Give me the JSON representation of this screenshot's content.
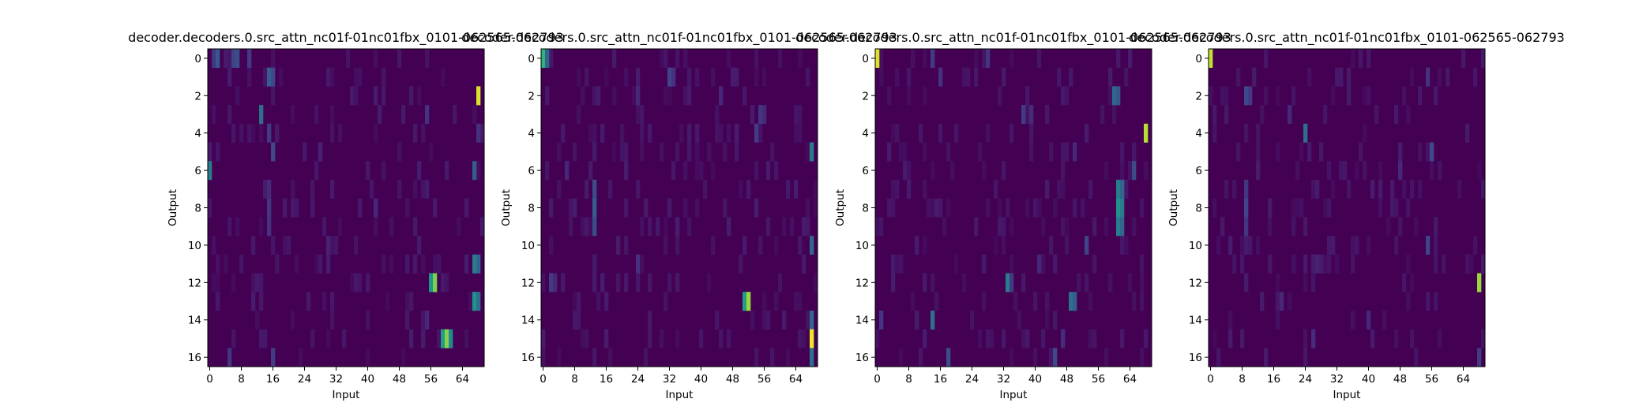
{
  "chart_data": [
    {
      "type": "heatmap",
      "title": "decoder.decoders.0.src_attn_nc01f-01nc01fbx_0101-062565-062793",
      "xlabel": "Input",
      "ylabel": "Output",
      "x_ticks": [
        "0",
        "8",
        "16",
        "24",
        "32",
        "40",
        "48",
        "56",
        "64"
      ],
      "y_ticks": [
        "0",
        "2",
        "4",
        "6",
        "8",
        "10",
        "12",
        "14",
        "16"
      ],
      "n_rows": 17,
      "n_cols": 70,
      "colormap": "viridis",
      "value_range": [
        0,
        1
      ],
      "background_value": 0.0,
      "highlights": [
        {
          "row": 0,
          "col": 1,
          "v": 0.2
        },
        {
          "row": 0,
          "col": 2,
          "v": 0.35
        },
        {
          "row": 0,
          "col": 6,
          "v": 0.25
        },
        {
          "row": 0,
          "col": 7,
          "v": 0.3
        },
        {
          "row": 0,
          "col": 10,
          "v": 0.22
        },
        {
          "row": 1,
          "col": 15,
          "v": 0.38
        },
        {
          "row": 1,
          "col": 16,
          "v": 0.28
        },
        {
          "row": 2,
          "col": 68,
          "v": 0.95
        },
        {
          "row": 3,
          "col": 13,
          "v": 0.42
        },
        {
          "row": 3,
          "col": 55,
          "v": 0.18
        },
        {
          "row": 4,
          "col": 15,
          "v": 0.22
        },
        {
          "row": 4,
          "col": 68,
          "v": 0.18
        },
        {
          "row": 5,
          "col": 16,
          "v": 0.28
        },
        {
          "row": 5,
          "col": 28,
          "v": 0.12
        },
        {
          "row": 6,
          "col": 0,
          "v": 0.45
        },
        {
          "row": 6,
          "col": 67,
          "v": 0.38
        },
        {
          "row": 7,
          "col": 15,
          "v": 0.15
        },
        {
          "row": 8,
          "col": 15,
          "v": 0.2
        },
        {
          "row": 8,
          "col": 42,
          "v": 0.14
        },
        {
          "row": 9,
          "col": 15,
          "v": 0.18
        },
        {
          "row": 10,
          "col": 30,
          "v": 0.12
        },
        {
          "row": 11,
          "col": 67,
          "v": 0.45
        },
        {
          "row": 11,
          "col": 68,
          "v": 0.4
        },
        {
          "row": 12,
          "col": 56,
          "v": 0.52
        },
        {
          "row": 12,
          "col": 57,
          "v": 0.8
        },
        {
          "row": 13,
          "col": 67,
          "v": 0.5
        },
        {
          "row": 13,
          "col": 68,
          "v": 0.42
        },
        {
          "row": 14,
          "col": 55,
          "v": 0.15
        },
        {
          "row": 15,
          "col": 59,
          "v": 0.55
        },
        {
          "row": 15,
          "col": 60,
          "v": 0.82
        },
        {
          "row": 15,
          "col": 61,
          "v": 0.48
        },
        {
          "row": 16,
          "col": 5,
          "v": 0.2
        },
        {
          "row": 16,
          "col": 16,
          "v": 0.22
        }
      ]
    },
    {
      "type": "heatmap",
      "title": "decoder.decoders.0.src_attn_nc01f-01nc01fbx_0101-062565-062793",
      "xlabel": "Input",
      "ylabel": "Output",
      "x_ticks": [
        "0",
        "8",
        "16",
        "24",
        "32",
        "40",
        "48",
        "56",
        "64"
      ],
      "y_ticks": [
        "0",
        "2",
        "4",
        "6",
        "8",
        "10",
        "12",
        "14",
        "16"
      ],
      "n_rows": 17,
      "n_cols": 70,
      "colormap": "viridis",
      "value_range": [
        0,
        1
      ],
      "background_value": 0.0,
      "highlights": [
        {
          "row": 0,
          "col": 0,
          "v": 0.65
        },
        {
          "row": 0,
          "col": 1,
          "v": 0.4
        },
        {
          "row": 1,
          "col": 32,
          "v": 0.25
        },
        {
          "row": 1,
          "col": 33,
          "v": 0.18
        },
        {
          "row": 2,
          "col": 24,
          "v": 0.15
        },
        {
          "row": 2,
          "col": 45,
          "v": 0.14
        },
        {
          "row": 3,
          "col": 55,
          "v": 0.2
        },
        {
          "row": 3,
          "col": 56,
          "v": 0.15
        },
        {
          "row": 4,
          "col": 54,
          "v": 0.22
        },
        {
          "row": 5,
          "col": 68,
          "v": 0.45
        },
        {
          "row": 6,
          "col": 6,
          "v": 0.14
        },
        {
          "row": 7,
          "col": 13,
          "v": 0.3
        },
        {
          "row": 8,
          "col": 13,
          "v": 0.38
        },
        {
          "row": 9,
          "col": 13,
          "v": 0.3
        },
        {
          "row": 10,
          "col": 68,
          "v": 0.4
        },
        {
          "row": 11,
          "col": 24,
          "v": 0.18
        },
        {
          "row": 12,
          "col": 2,
          "v": 0.22
        },
        {
          "row": 12,
          "col": 3,
          "v": 0.15
        },
        {
          "row": 13,
          "col": 51,
          "v": 0.55
        },
        {
          "row": 13,
          "col": 52,
          "v": 0.85
        },
        {
          "row": 14,
          "col": 68,
          "v": 0.4
        },
        {
          "row": 15,
          "col": 68,
          "v": 0.98
        },
        {
          "row": 16,
          "col": 68,
          "v": 0.42
        }
      ]
    },
    {
      "type": "heatmap",
      "title": "decoder.decoders.0.src_attn_nc01f-01nc01fbx_0101-062565-062793",
      "xlabel": "Input",
      "ylabel": "Output",
      "x_ticks": [
        "0",
        "8",
        "16",
        "24",
        "32",
        "40",
        "48",
        "56",
        "64"
      ],
      "y_ticks": [
        "0",
        "2",
        "4",
        "6",
        "8",
        "10",
        "12",
        "14",
        "16"
      ],
      "n_rows": 17,
      "n_cols": 70,
      "colormap": "viridis",
      "value_range": [
        0,
        1
      ],
      "background_value": 0.0,
      "highlights": [
        {
          "row": 0,
          "col": 0,
          "v": 0.95
        },
        {
          "row": 0,
          "col": 14,
          "v": 0.22
        },
        {
          "row": 0,
          "col": 28,
          "v": 0.2
        },
        {
          "row": 1,
          "col": 16,
          "v": 0.18
        },
        {
          "row": 2,
          "col": 60,
          "v": 0.4
        },
        {
          "row": 2,
          "col": 61,
          "v": 0.35
        },
        {
          "row": 3,
          "col": 37,
          "v": 0.22
        },
        {
          "row": 3,
          "col": 39,
          "v": 0.16
        },
        {
          "row": 4,
          "col": 68,
          "v": 0.9
        },
        {
          "row": 5,
          "col": 50,
          "v": 0.14
        },
        {
          "row": 6,
          "col": 65,
          "v": 0.3
        },
        {
          "row": 7,
          "col": 61,
          "v": 0.45
        },
        {
          "row": 7,
          "col": 62,
          "v": 0.4
        },
        {
          "row": 8,
          "col": 61,
          "v": 0.5
        },
        {
          "row": 8,
          "col": 62,
          "v": 0.45
        },
        {
          "row": 9,
          "col": 61,
          "v": 0.45
        },
        {
          "row": 9,
          "col": 62,
          "v": 0.4
        },
        {
          "row": 10,
          "col": 53,
          "v": 0.25
        },
        {
          "row": 11,
          "col": 41,
          "v": 0.14
        },
        {
          "row": 12,
          "col": 33,
          "v": 0.45
        },
        {
          "row": 12,
          "col": 34,
          "v": 0.22
        },
        {
          "row": 13,
          "col": 49,
          "v": 0.42
        },
        {
          "row": 13,
          "col": 50,
          "v": 0.38
        },
        {
          "row": 14,
          "col": 14,
          "v": 0.42
        },
        {
          "row": 14,
          "col": 1,
          "v": 0.2
        },
        {
          "row": 15,
          "col": 47,
          "v": 0.16
        },
        {
          "row": 16,
          "col": 18,
          "v": 0.3
        },
        {
          "row": 16,
          "col": 45,
          "v": 0.28
        }
      ]
    },
    {
      "type": "heatmap",
      "title": "decoder.decoders.0.src_attn_nc01f-01nc01fbx_0101-062565-062793",
      "xlabel": "Input",
      "ylabel": "Output",
      "x_ticks": [
        "0",
        "8",
        "16",
        "24",
        "32",
        "40",
        "48",
        "56",
        "64"
      ],
      "y_ticks": [
        "0",
        "2",
        "4",
        "6",
        "8",
        "10",
        "12",
        "14",
        "16"
      ],
      "n_rows": 17,
      "n_cols": 70,
      "colormap": "viridis",
      "value_range": [
        0,
        1
      ],
      "background_value": 0.0,
      "highlights": [
        {
          "row": 0,
          "col": 0,
          "v": 0.92
        },
        {
          "row": 1,
          "col": 55,
          "v": 0.18
        },
        {
          "row": 2,
          "col": 9,
          "v": 0.28
        },
        {
          "row": 2,
          "col": 10,
          "v": 0.22
        },
        {
          "row": 3,
          "col": 20,
          "v": 0.14
        },
        {
          "row": 4,
          "col": 24,
          "v": 0.42
        },
        {
          "row": 5,
          "col": 56,
          "v": 0.28
        },
        {
          "row": 6,
          "col": 48,
          "v": 0.14
        },
        {
          "row": 7,
          "col": 9,
          "v": 0.2
        },
        {
          "row": 8,
          "col": 9,
          "v": 0.26
        },
        {
          "row": 9,
          "col": 9,
          "v": 0.2
        },
        {
          "row": 10,
          "col": 55,
          "v": 0.26
        },
        {
          "row": 11,
          "col": 27,
          "v": 0.12
        },
        {
          "row": 12,
          "col": 68,
          "v": 0.85
        },
        {
          "row": 13,
          "col": 18,
          "v": 0.14
        },
        {
          "row": 14,
          "col": 40,
          "v": 0.14
        },
        {
          "row": 15,
          "col": 26,
          "v": 0.16
        },
        {
          "row": 16,
          "col": 68,
          "v": 0.22
        }
      ]
    }
  ]
}
